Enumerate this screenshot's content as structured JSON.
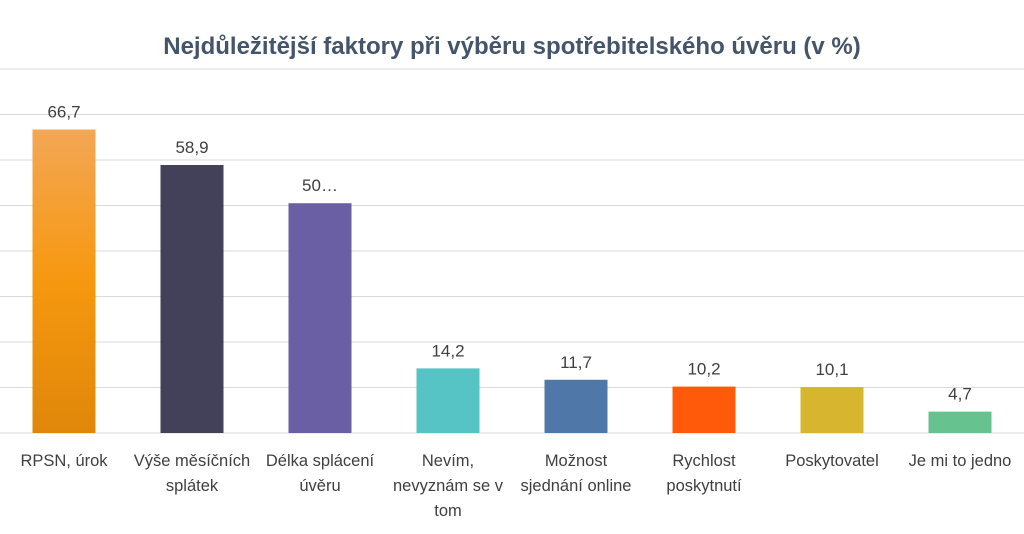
{
  "chart_data": {
    "type": "bar",
    "title": "Nejdůležitější faktory při výběru spotřebitelského úvěru (v %)",
    "xlabel": "",
    "ylabel": "",
    "ylim": [
      0,
      80
    ],
    "grid": true,
    "legend": "none",
    "categories": [
      [
        "RPSN, úrok"
      ],
      [
        "Výše měsíčních",
        "splátek"
      ],
      [
        "Délka splácení",
        "úvěru"
      ],
      [
        "Nevím,",
        "nevyznám se v",
        "tom"
      ],
      [
        "Možnost",
        "sjednání online"
      ],
      [
        "Rychlost",
        "poskytnutí"
      ],
      [
        "Poskytovatel"
      ],
      [
        "Je mi to jedno"
      ]
    ],
    "values": [
      66.7,
      58.9,
      50.5,
      14.2,
      11.7,
      10.2,
      10.1,
      4.7
    ],
    "data_labels": [
      "66,7",
      "58,9",
      "50…",
      "14,2",
      "11,7",
      "10,2",
      "10,1",
      "4,7"
    ],
    "colors": [
      "#f39c12",
      "#43405a",
      "#6a5fa4",
      "#56c4c5",
      "#4f78a8",
      "#ff5a0a",
      "#d8b52e",
      "#66c28f"
    ]
  }
}
